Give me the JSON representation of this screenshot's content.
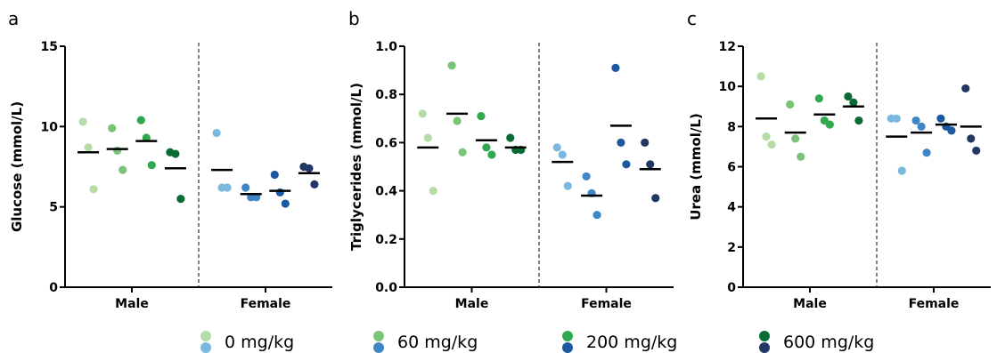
{
  "colors": {
    "male": [
      "#b6dca6",
      "#7cc37a",
      "#2fa84f",
      "#0a6b35"
    ],
    "female": [
      "#7ab8e0",
      "#3f86c6",
      "#1b58a0",
      "#233764"
    ],
    "mean_line": "#000000",
    "axis": "#000000"
  },
  "legend": [
    {
      "label": "0 mg/kg"
    },
    {
      "label": "60 mg/kg"
    },
    {
      "label": "200 mg/kg"
    },
    {
      "label": "600 mg/kg"
    }
  ],
  "chart_data": [
    {
      "type": "scatter",
      "panel": "a",
      "ylabel": "Glucose (mmol/L)",
      "ylim": [
        0,
        15
      ],
      "yticks": [
        "0",
        "5",
        "10",
        "15"
      ],
      "categories": [
        "Male",
        "Female"
      ],
      "groups": {
        "Male": [
          {
            "dose": "0 mg/kg",
            "points": [
              10.3,
              8.7,
              6.1
            ],
            "mean": 8.4
          },
          {
            "dose": "60 mg/kg",
            "points": [
              9.9,
              8.5,
              7.3
            ],
            "mean": 8.6
          },
          {
            "dose": "200 mg/kg",
            "points": [
              10.4,
              9.3,
              7.6
            ],
            "mean": 9.1
          },
          {
            "dose": "600 mg/kg",
            "points": [
              8.4,
              8.3,
              5.5
            ],
            "mean": 7.4
          }
        ],
        "Female": [
          {
            "dose": "0 mg/kg",
            "points": [
              9.6,
              6.2,
              6.2
            ],
            "mean": 7.3
          },
          {
            "dose": "60 mg/kg",
            "points": [
              6.2,
              5.6,
              5.6
            ],
            "mean": 5.8
          },
          {
            "dose": "200 mg/kg",
            "points": [
              7.0,
              5.9,
              5.2
            ],
            "mean": 6.0
          },
          {
            "dose": "600 mg/kg",
            "points": [
              7.5,
              7.4,
              6.4
            ],
            "mean": 7.1
          }
        ]
      }
    },
    {
      "type": "scatter",
      "panel": "b",
      "ylabel": "Triglycerides (mmol/L)",
      "ylim": [
        0,
        1.0
      ],
      "yticks": [
        "0.0",
        "0.2",
        "0.4",
        "0.6",
        "0.8",
        "1.0"
      ],
      "categories": [
        "Male",
        "Female"
      ],
      "groups": {
        "Male": [
          {
            "dose": "0 mg/kg",
            "points": [
              0.72,
              0.62,
              0.4
            ],
            "mean": 0.58
          },
          {
            "dose": "60 mg/kg",
            "points": [
              0.92,
              0.69,
              0.56
            ],
            "mean": 0.72
          },
          {
            "dose": "200 mg/kg",
            "points": [
              0.71,
              0.58,
              0.55
            ],
            "mean": 0.61
          },
          {
            "dose": "600 mg/kg",
            "points": [
              0.62,
              0.57,
              0.57
            ],
            "mean": 0.58
          }
        ],
        "Female": [
          {
            "dose": "0 mg/kg",
            "points": [
              0.58,
              0.55,
              0.42
            ],
            "mean": 0.52
          },
          {
            "dose": "60 mg/kg",
            "points": [
              0.46,
              0.39,
              0.3
            ],
            "mean": 0.38
          },
          {
            "dose": "200 mg/kg",
            "points": [
              0.91,
              0.6,
              0.51
            ],
            "mean": 0.67
          },
          {
            "dose": "600 mg/kg",
            "points": [
              0.6,
              0.51,
              0.37
            ],
            "mean": 0.49
          }
        ]
      }
    },
    {
      "type": "scatter",
      "panel": "c",
      "ylabel": "Urea (mmol/L)",
      "ylim": [
        0,
        12
      ],
      "yticks": [
        "0",
        "2",
        "4",
        "6",
        "8",
        "10",
        "12"
      ],
      "categories": [
        "Male",
        "Female"
      ],
      "groups": {
        "Male": [
          {
            "dose": "0 mg/kg",
            "points": [
              10.5,
              7.5,
              7.1
            ],
            "mean": 8.4
          },
          {
            "dose": "60 mg/kg",
            "points": [
              9.1,
              7.4,
              6.5
            ],
            "mean": 7.7
          },
          {
            "dose": "200 mg/kg",
            "points": [
              9.4,
              8.3,
              8.1
            ],
            "mean": 8.6
          },
          {
            "dose": "600 mg/kg",
            "points": [
              9.5,
              9.2,
              8.3
            ],
            "mean": 9.0
          }
        ],
        "Female": [
          {
            "dose": "0 mg/kg",
            "points": [
              8.4,
              8.4,
              5.8
            ],
            "mean": 7.5
          },
          {
            "dose": "60 mg/kg",
            "points": [
              8.3,
              8.0,
              6.7
            ],
            "mean": 7.7
          },
          {
            "dose": "200 mg/kg",
            "points": [
              8.4,
              8.0,
              7.8
            ],
            "mean": 8.1
          },
          {
            "dose": "600 mg/kg",
            "points": [
              9.9,
              7.4,
              6.8
            ],
            "mean": 8.0
          }
        ]
      }
    }
  ]
}
